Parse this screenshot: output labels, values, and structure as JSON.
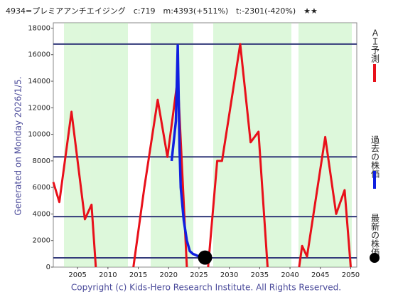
{
  "chart_data": {
    "type": "line",
    "title": "4934=プレミアアンチエイジング　c:719　m:4393(+511%)　t:-2301(-420%)　★★",
    "side_label": "Generated on Monday 2026/1/5.",
    "footer": "Copyright (c) Kids-Hero Research Institute. All Rights Reserved.",
    "xlim": [
      2001,
      2051
    ],
    "ylim": [
      0,
      18400
    ],
    "xticks": [
      2005,
      2010,
      2015,
      2020,
      2025,
      2030,
      2035,
      2040,
      2045,
      2050
    ],
    "yticks": [
      0,
      2000,
      4000,
      6000,
      8000,
      10000,
      12000,
      14000,
      16000,
      18000
    ],
    "levels": [
      16800,
      8300,
      3800,
      700
    ],
    "level_color": "#333a7a",
    "series": [
      {
        "name": "ＡＩ予測",
        "color": "#e8101a",
        "x": [
          2001,
          2002,
          2004,
          2006.2,
          2007.3,
          2008,
          null,
          2014.2,
          2016,
          2018.2,
          2019.8,
          2021.5,
          2023,
          null,
          2026.5,
          2028,
          2028.8,
          2031.8,
          2033.5,
          2034.8,
          2036.3,
          null,
          2041.5,
          2042,
          2042.8,
          2045.8,
          2047.6,
          2049,
          2050
        ],
        "values": [
          6400,
          4900,
          11700,
          3600,
          4700,
          0,
          null,
          0,
          6000,
          12600,
          8300,
          14200,
          0,
          null,
          0,
          8000,
          8000,
          16800,
          9400,
          10200,
          0,
          null,
          0,
          1600,
          800,
          9800,
          4000,
          5800,
          0
        ]
      },
      {
        "name": "過去の株価",
        "color": "#1020e0",
        "x": [
          2020.5,
          2021.2,
          2021.5,
          2021.8,
          2022,
          2022.5,
          2023,
          2023.5,
          2024,
          2025
        ],
        "values": [
          8000,
          11000,
          16700,
          9000,
          6000,
          3500,
          2000,
          1200,
          1000,
          800
        ]
      },
      {
        "name": "最新の株価",
        "color": "#000000",
        "x": [
          2026
        ],
        "values": [
          719
        ]
      }
    ]
  }
}
